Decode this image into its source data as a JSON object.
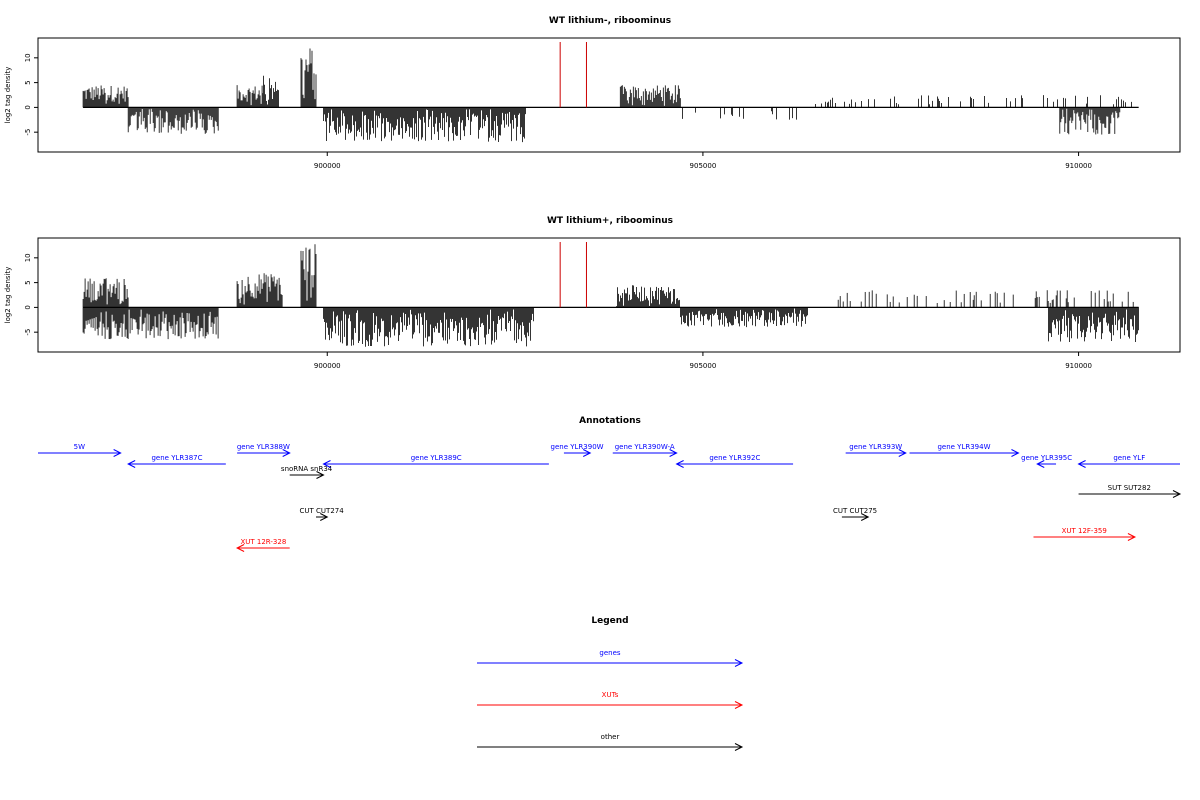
{
  "colors": {
    "genes": "#0000ff",
    "xuts": "#ff0000",
    "other": "#000000",
    "signal": "#000000",
    "marker": "#cc0000"
  },
  "chart_data": [
    {
      "type": "bar",
      "title": "WT lithium-, riboominus",
      "ylabel": "log2 tag density",
      "xlim": [
        896150,
        911350
      ],
      "ylim": [
        -9,
        14
      ],
      "yticks": [
        -5,
        0,
        5,
        10
      ],
      "xticks": [
        900000,
        905000,
        910000
      ],
      "grid": false,
      "data_start": 896750,
      "data_end": 910800,
      "markers_x": [
        903100,
        903450
      ],
      "positive_blocks": [
        {
          "x": [
            896750,
            897350
          ],
          "max": 4.5
        },
        {
          "x": [
            898800,
            899150
          ],
          "max": 4.5
        },
        {
          "x": [
            899150,
            899350
          ],
          "max": 7.5
        },
        {
          "x": [
            899650,
            899850
          ],
          "max": 12.5
        },
        {
          "x": [
            903900,
            904700
          ],
          "max": 4.5
        },
        {
          "x": [
            906500,
            910800
          ],
          "max": 2.5,
          "sparse": true
        }
      ],
      "negative_blocks": [
        {
          "x": [
            897350,
            898550
          ],
          "min": -5.5
        },
        {
          "x": [
            899950,
            902650
          ],
          "min": -7.0
        },
        {
          "x": [
            904700,
            906300
          ],
          "min": -3.0,
          "sparse": true
        },
        {
          "x": [
            909750,
            910550
          ],
          "min": -5.5
        }
      ]
    },
    {
      "type": "bar",
      "title": "WT lithium+, riboominus",
      "ylabel": "log2 tag density",
      "xlim": [
        896150,
        911350
      ],
      "ylim": [
        -9,
        14
      ],
      "yticks": [
        -5,
        0,
        5,
        10
      ],
      "xticks": [
        900000,
        905000,
        910000
      ],
      "grid": false,
      "data_start": 896750,
      "data_end": 910800,
      "markers_x": [
        903100,
        903450
      ],
      "positive_blocks": [
        {
          "x": [
            896750,
            897350
          ],
          "max": 6.0
        },
        {
          "x": [
            898800,
            899400
          ],
          "max": 7.0
        },
        {
          "x": [
            899650,
            899850
          ],
          "max": 13.0
        },
        {
          "x": [
            903850,
            904700
          ],
          "max": 4.5
        },
        {
          "x": [
            906800,
            910800
          ],
          "max": 3.5,
          "sparse": true
        }
      ],
      "negative_blocks": [
        {
          "x": [
            896750,
            898550
          ],
          "min": -6.5
        },
        {
          "x": [
            899950,
            902750
          ],
          "min": -8.0
        },
        {
          "x": [
            904700,
            906400
          ],
          "min": -4.0
        },
        {
          "x": [
            909600,
            910800
          ],
          "min": -7.0
        }
      ]
    }
  ],
  "annotations": {
    "title": "Annotations",
    "features": [
      {
        "label": "5W",
        "category": "genes",
        "start": 896150,
        "end": 897250,
        "strand": "+",
        "row": 0
      },
      {
        "label": "gene YLR387C",
        "category": "genes",
        "start": 897350,
        "end": 898650,
        "strand": "-",
        "row": 1
      },
      {
        "label": "gene YLR388W",
        "category": "genes",
        "start": 898800,
        "end": 899500,
        "strand": "+",
        "row": 0
      },
      {
        "label": "snoRNA snR34",
        "category": "other",
        "start": 899500,
        "end": 899950,
        "strand": "+",
        "row": 2
      },
      {
        "label": "gene YLR389C",
        "category": "genes",
        "start": 899950,
        "end": 902950,
        "strand": "-",
        "row": 1
      },
      {
        "label": "CUT CUT274",
        "category": "other",
        "start": 899850,
        "end": 900000,
        "strand": "+",
        "row": 3
      },
      {
        "label": "XUT 12R-328",
        "category": "xuts",
        "start": 898800,
        "end": 899500,
        "strand": "-",
        "row": 4
      },
      {
        "label": "gene YLR390W",
        "category": "genes",
        "start": 903150,
        "end": 903500,
        "strand": "+",
        "row": 0
      },
      {
        "label": "gene YLR390W-A",
        "category": "genes",
        "start": 903800,
        "end": 904650,
        "strand": "+",
        "row": 0
      },
      {
        "label": "gene YLR392C",
        "category": "genes",
        "start": 904650,
        "end": 906200,
        "strand": "-",
        "row": 1
      },
      {
        "label": "gene YLR393W",
        "category": "genes",
        "start": 906900,
        "end": 907700,
        "strand": "+",
        "row": 0
      },
      {
        "label": "gene YLR394W",
        "category": "genes",
        "start": 907750,
        "end": 909200,
        "strand": "+",
        "row": 0
      },
      {
        "label": "CUT CUT275",
        "category": "other",
        "start": 906850,
        "end": 907200,
        "strand": "+",
        "row": 3
      },
      {
        "label": "gene YLR395C",
        "category": "genes",
        "start": 909450,
        "end": 909700,
        "strand": "-",
        "row": 1
      },
      {
        "label": "gene YLF",
        "category": "genes",
        "start": 910000,
        "end": 911350,
        "strand": "-",
        "row": 1
      },
      {
        "label": "SUT SUT282",
        "category": "other",
        "start": 910000,
        "end": 911350,
        "strand": "+",
        "row": 5
      },
      {
        "label": "XUT 12F-359",
        "category": "xuts",
        "start": 909400,
        "end": 910750,
        "strand": "+",
        "row": 6
      }
    ]
  },
  "legend": {
    "title": "Legend",
    "entries": [
      {
        "label": "genes",
        "category": "genes"
      },
      {
        "label": "XUTs",
        "category": "xuts"
      },
      {
        "label": "other",
        "category": "other"
      }
    ]
  }
}
